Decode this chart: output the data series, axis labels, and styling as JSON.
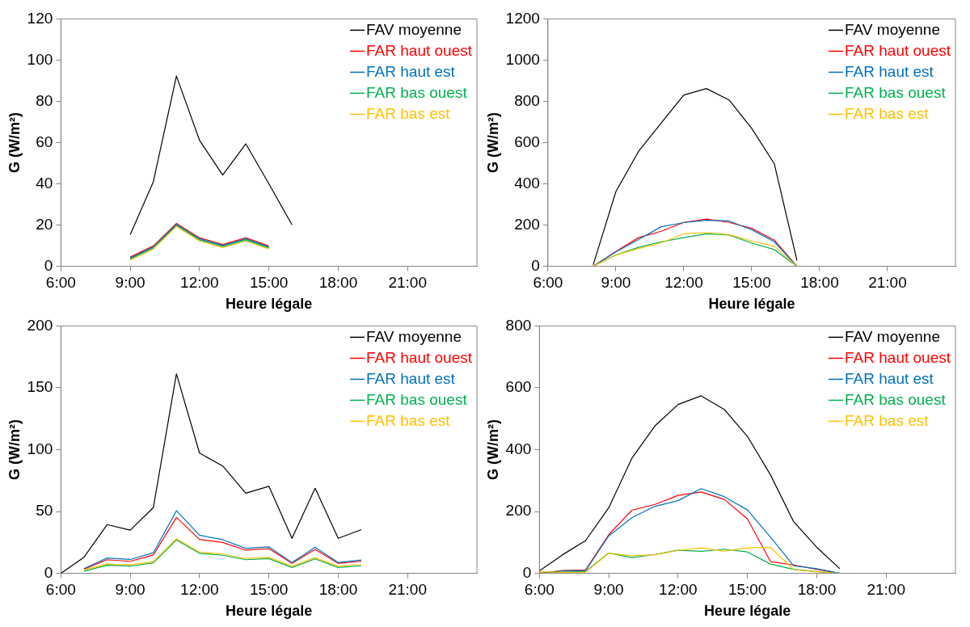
{
  "chart_data": [
    {
      "type": "line",
      "xlabel": "Heure légale",
      "ylabel": "G (W/m²)",
      "x": [
        9,
        10,
        11,
        12,
        13,
        14,
        15,
        16
      ],
      "xlim": [
        6,
        24
      ],
      "xticks": [
        {
          "value": 6,
          "label": "6:00"
        },
        {
          "value": 9,
          "label": "9:00"
        },
        {
          "value": 12,
          "label": "12:00"
        },
        {
          "value": 15,
          "label": "15:00"
        },
        {
          "value": 18,
          "label": "18:00"
        },
        {
          "value": 21,
          "label": "21:00"
        }
      ],
      "ylim": [
        0,
        120
      ],
      "yticks": [
        0,
        20,
        40,
        60,
        80,
        100,
        120
      ],
      "grid": false,
      "legend": "top right",
      "series": [
        {
          "name": "FAV moyenne",
          "color": "#000000",
          "values": [
            15.3,
            41,
            92.3,
            61.1,
            44.3,
            59.4,
            40,
            20.1
          ]
        },
        {
          "name": "FAR haut ouest",
          "color": "#ff0000",
          "values": [
            4.5,
            9.9,
            20.8,
            13.8,
            10.6,
            13.8,
            9.9,
            null
          ]
        },
        {
          "name": "FAR haut est",
          "color": "#0070c0",
          "values": [
            4,
            9.4,
            20.3,
            13.3,
            10.1,
            13.3,
            9.4,
            null
          ]
        },
        {
          "name": "FAR bas ouest",
          "color": "#00b050",
          "values": [
            3.5,
            8.9,
            19.8,
            12.8,
            9.6,
            12.8,
            8.9,
            null
          ]
        },
        {
          "name": "FAR bas est",
          "color": "#ffc000",
          "values": [
            3,
            8.4,
            19.3,
            12.3,
            9.1,
            12.3,
            8.4,
            null
          ]
        }
      ]
    },
    {
      "type": "line",
      "xlabel": "Heure légale",
      "ylabel": "G (W/m²)",
      "x": [
        8,
        9,
        10,
        11,
        12,
        13,
        14,
        15,
        16,
        17
      ],
      "xlim": [
        6,
        24
      ],
      "xticks": [
        {
          "value": 6,
          "label": "6:00"
        },
        {
          "value": 9,
          "label": "9:00"
        },
        {
          "value": 12,
          "label": "12:00"
        },
        {
          "value": 15,
          "label": "15:00"
        },
        {
          "value": 18,
          "label": "18:00"
        },
        {
          "value": 21,
          "label": "21:00"
        }
      ],
      "ylim": [
        0,
        1200
      ],
      "yticks": [
        0,
        200,
        400,
        600,
        800,
        1000,
        1200
      ],
      "grid": false,
      "legend": "top right",
      "series": [
        {
          "name": "FAV moyenne",
          "color": "#000000",
          "values": [
            8,
            362,
            557,
            695,
            831,
            862,
            807,
            669,
            497,
            28
          ]
        },
        {
          "name": "FAR haut ouest",
          "color": "#ff0000",
          "values": [
            0,
            72,
            139,
            170,
            213,
            229,
            213,
            184,
            127,
            0
          ]
        },
        {
          "name": "FAR haut est",
          "color": "#0070c0",
          "values": [
            0,
            70,
            130,
            192,
            212,
            223,
            220,
            177,
            119,
            0
          ]
        },
        {
          "name": "FAR bas ouest",
          "color": "#00b050",
          "values": [
            0,
            55,
            92,
            119,
            139,
            158,
            152,
            113,
            81,
            0
          ]
        },
        {
          "name": "FAR bas est",
          "color": "#ffc000",
          "values": [
            0,
            55,
            86,
            113,
            159,
            163,
            154,
            123,
            97,
            0
          ]
        }
      ]
    },
    {
      "type": "line",
      "xlabel": "Heure légale",
      "ylabel": "G (W/m²)",
      "x": [
        6,
        7,
        8,
        9,
        10,
        11,
        12,
        13,
        14,
        15,
        16,
        17,
        18,
        19
      ],
      "xlim": [
        6,
        24
      ],
      "xticks": [
        {
          "value": 6,
          "label": "6:00"
        },
        {
          "value": 9,
          "label": "9:00"
        },
        {
          "value": 12,
          "label": "12:00"
        },
        {
          "value": 15,
          "label": "15:00"
        },
        {
          "value": 18,
          "label": "18:00"
        },
        {
          "value": 21,
          "label": "21:00"
        }
      ],
      "ylim": [
        0,
        200
      ],
      "yticks": [
        0,
        50,
        100,
        150,
        200
      ],
      "grid": false,
      "legend": "top right",
      "series": [
        {
          "name": "FAV moyenne",
          "color": "#000000",
          "values": [
            0,
            13,
            39.4,
            34.9,
            53.1,
            161.3,
            97.2,
            86.8,
            64.8,
            70.4,
            28.3,
            68.8,
            28.3,
            35.3
          ]
        },
        {
          "name": "FAR haut ouest",
          "color": "#ff0000",
          "values": [
            null,
            3.4,
            11,
            9.7,
            14.8,
            45.2,
            27.4,
            25,
            18.7,
            20,
            8.1,
            19.3,
            8.1,
            9.7
          ]
        },
        {
          "name": "FAR haut est",
          "color": "#0070c0",
          "values": [
            null,
            3.8,
            12.4,
            11.2,
            16.6,
            50.6,
            30.8,
            27.2,
            20.2,
            21.4,
            8.8,
            21.1,
            8.8,
            10.8
          ]
        },
        {
          "name": "FAR bas ouest",
          "color": "#00b050",
          "values": [
            null,
            1.8,
            6.5,
            5.8,
            8.5,
            27,
            16.2,
            14.6,
            11,
            11.9,
            4.7,
            11.7,
            4.7,
            6.1
          ]
        },
        {
          "name": "FAR bas est",
          "color": "#ffc000",
          "values": [
            null,
            2.8,
            7.5,
            6.8,
            9.5,
            28,
            17.2,
            15.6,
            12,
            12.9,
            5.7,
            12.7,
            5.7,
            7.1
          ]
        }
      ]
    },
    {
      "type": "line",
      "xlabel": "Heure légale",
      "ylabel": "G (W/m²)",
      "x": [
        6,
        7,
        8,
        9,
        10,
        11,
        12,
        13,
        14,
        15,
        16,
        17,
        18,
        19
      ],
      "xlim": [
        6,
        24
      ],
      "xticks": [
        {
          "value": 6,
          "label": "6:00"
        },
        {
          "value": 9,
          "label": "9:00"
        },
        {
          "value": 12,
          "label": "12:00"
        },
        {
          "value": 15,
          "label": "15:00"
        },
        {
          "value": 18,
          "label": "18:00"
        },
        {
          "value": 21,
          "label": "21:00"
        }
      ],
      "ylim": [
        0,
        800
      ],
      "yticks": [
        0,
        200,
        400,
        600,
        800
      ],
      "grid": false,
      "legend": "top right",
      "series": [
        {
          "name": "FAV moyenne",
          "color": "#000000",
          "values": [
            8,
            60,
            106,
            212,
            372,
            477,
            546,
            574,
            530,
            443,
            318,
            167,
            84,
            15
          ]
        },
        {
          "name": "FAR haut ouest",
          "color": "#ff0000",
          "values": [
            0,
            9,
            11,
            125,
            204,
            223,
            252,
            263,
            239,
            176,
            38,
            27,
            13,
            0
          ]
        },
        {
          "name": "FAR haut est",
          "color": "#0070c0",
          "values": [
            0,
            8,
            9,
            121,
            180,
            217,
            235,
            274,
            248,
            205,
            117,
            25,
            15,
            0
          ]
        },
        {
          "name": "FAR bas ouest",
          "color": "#00b050",
          "values": [
            0,
            4,
            6,
            66,
            51,
            61,
            75,
            71,
            78,
            69,
            30,
            13,
            6,
            0
          ]
        },
        {
          "name": "FAR bas est",
          "color": "#ffc000",
          "values": [
            5,
            3,
            4,
            65,
            57,
            60,
            74,
            82,
            72,
            82,
            84,
            12,
            5,
            0
          ]
        }
      ]
    }
  ]
}
